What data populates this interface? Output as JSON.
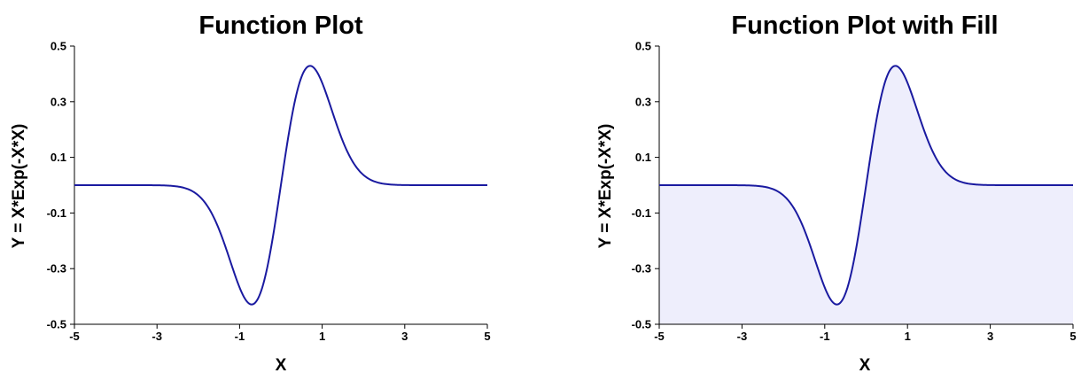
{
  "chart_data": [
    {
      "type": "line",
      "title": "Function Plot",
      "xlabel": "X",
      "ylabel": "Y = X*Exp(-X*X)",
      "function": "X*Exp(-X*X)",
      "xlim": [
        -5,
        5
      ],
      "ylim": [
        -0.5,
        0.5
      ],
      "xticks": [
        -5,
        -3,
        -1,
        1,
        3,
        5
      ],
      "xtick_labels": [
        "-5",
        "-3",
        "-1",
        "1",
        "3",
        "5"
      ],
      "yticks": [
        -0.5,
        -0.3,
        -0.1,
        0.1,
        0.3,
        0.5
      ],
      "ytick_labels": [
        "-0.5",
        "-0.3",
        "-0.1",
        "0.1",
        "0.3",
        "0.5"
      ],
      "grid": false,
      "fill": false,
      "line_color": "#1a1aa0",
      "series": [
        {
          "x": [
            -5,
            -3,
            -2.5,
            -2,
            -1.75,
            -1.5,
            -1.25,
            -1,
            -0.85,
            -0.707,
            -0.5,
            -0.25,
            0,
            0.25,
            0.5,
            0.707,
            0.85,
            1,
            1.25,
            1.5,
            1.75,
            2,
            2.5,
            3,
            5
          ],
          "values": [
            0,
            -0.0004,
            -0.0048,
            -0.0366,
            -0.0819,
            -0.1581,
            -0.262,
            -0.3679,
            -0.4131,
            -0.4289,
            -0.3894,
            -0.2348,
            0,
            0.2348,
            0.3894,
            0.4289,
            0.4131,
            0.3679,
            0.262,
            0.1581,
            0.0819,
            0.0366,
            0.0048,
            0.0004,
            0
          ]
        }
      ]
    },
    {
      "type": "area",
      "title": "Function Plot with Fill",
      "xlabel": "X",
      "ylabel": "Y = X*Exp(-X*X)",
      "function": "X*Exp(-X*X)",
      "xlim": [
        -5,
        5
      ],
      "ylim": [
        -0.5,
        0.5
      ],
      "xticks": [
        -5,
        -3,
        -1,
        1,
        3,
        5
      ],
      "xtick_labels": [
        "-5",
        "-3",
        "-1",
        "1",
        "3",
        "5"
      ],
      "yticks": [
        -0.5,
        -0.3,
        -0.1,
        0.1,
        0.3,
        0.5
      ],
      "ytick_labels": [
        "-0.5",
        "-0.3",
        "-0.1",
        "0.1",
        "0.3",
        "0.5"
      ],
      "grid": false,
      "fill": true,
      "fill_color": "#eeeefc",
      "line_color": "#1a1aa0",
      "series": [
        {
          "x": [
            -5,
            -3,
            -2.5,
            -2,
            -1.75,
            -1.5,
            -1.25,
            -1,
            -0.85,
            -0.707,
            -0.5,
            -0.25,
            0,
            0.25,
            0.5,
            0.707,
            0.85,
            1,
            1.25,
            1.5,
            1.75,
            2,
            2.5,
            3,
            5
          ],
          "values": [
            0,
            -0.0004,
            -0.0048,
            -0.0366,
            -0.0819,
            -0.1581,
            -0.262,
            -0.3679,
            -0.4131,
            -0.4289,
            -0.3894,
            -0.2348,
            0,
            0.2348,
            0.3894,
            0.4289,
            0.4131,
            0.3679,
            0.262,
            0.1581,
            0.0819,
            0.0366,
            0.0048,
            0.0004,
            0
          ]
        }
      ]
    }
  ]
}
